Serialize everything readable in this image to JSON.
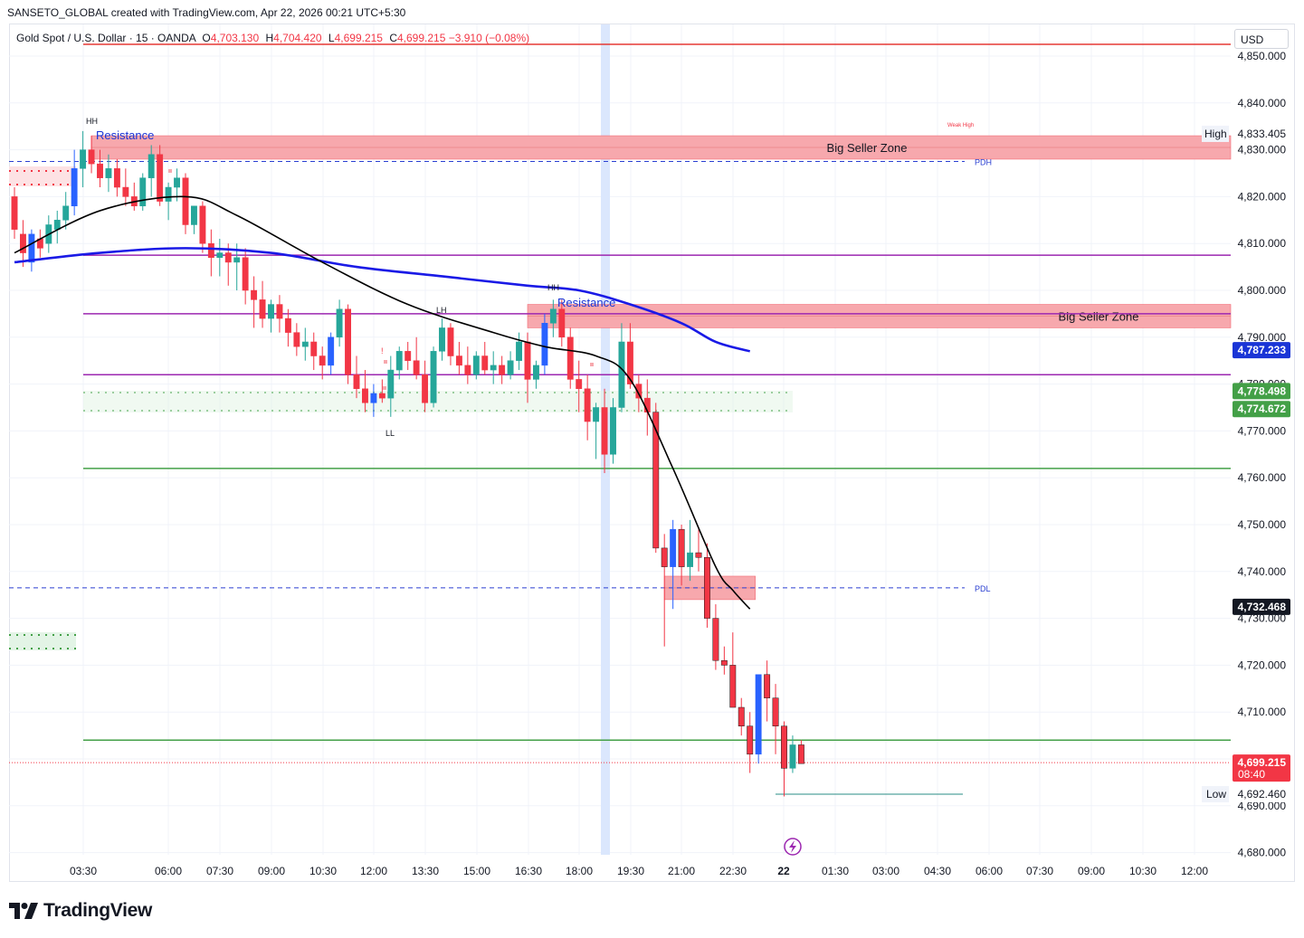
{
  "header": {
    "credit": "SANSETO_GLOBAL created with TradingView.com, Apr 22, 2026 00:21 UTC+5:30",
    "symbol": "Gold Spot / U.S. Dollar · 15 · OANDA",
    "o_label": "O",
    "o_value": "4,703.130",
    "h_label": "H",
    "h_value": "4,704.420",
    "l_label": "L",
    "l_value": "4,699.215",
    "c_label": "C",
    "c_value": "4,699.215 −3.910 (−0.08%)"
  },
  "currency": "USD",
  "brand": {
    "name": "TradingView",
    "icon": "tradingview-logo-icon"
  },
  "colors": {
    "up": "#26a69a",
    "up_alt": "#2962ff",
    "down": "#f23645",
    "ema20": "#000000",
    "ema50": "#1a1ae6",
    "zone": "#f7a8ad",
    "support": "#43a047",
    "level": "#9c27b0",
    "resistance_line": "#e53935",
    "session": "#dbe7fd"
  },
  "chart_data": {
    "type": "candlestick",
    "title": "Gold Spot / U.S. Dollar",
    "interval": "15",
    "exchange": "OANDA",
    "y_axis": {
      "range": [
        4677,
        4857
      ],
      "ticks": [
        "4,850.000",
        "4,840.000",
        "4,830.000",
        "4,820.000",
        "4,810.000",
        "4,800.000",
        "4,790.000",
        "4,780.000",
        "4,770.000",
        "4,760.000",
        "4,750.000",
        "4,740.000",
        "4,730.000",
        "4,720.000",
        "4,710.000",
        "4,700.000",
        "4,690.000",
        "4,680.000"
      ],
      "tick_values": [
        4850,
        4840,
        4830,
        4820,
        4810,
        4800,
        4790,
        4780,
        4770,
        4760,
        4750,
        4740,
        4730,
        4720,
        4710,
        4700,
        4690,
        4680
      ]
    },
    "x_axis": {
      "ticks": [
        "03:30",
        "06:00",
        "07:30",
        "09:00",
        "10:30",
        "12:00",
        "13:30",
        "15:00",
        "16:30",
        "18:00",
        "19:30",
        "21:00",
        "22:30",
        "22",
        "01:30",
        "03:00",
        "04:30",
        "06:00",
        "07:30",
        "09:00",
        "10:30",
        "12:00"
      ]
    },
    "candles": [
      [
        4820,
        4822,
        4811,
        4813
      ],
      [
        4812,
        4815,
        4805,
        4808
      ],
      [
        4806,
        4813,
        4804,
        4812
      ],
      [
        4811,
        4813,
        4807,
        4809
      ],
      [
        4810,
        4816,
        4808,
        4814
      ],
      [
        4813,
        4817,
        4810,
        4815
      ],
      [
        4815,
        4821,
        4813,
        4818
      ],
      [
        4818,
        4830,
        4816,
        4826
      ],
      [
        4826,
        4834,
        4822,
        4830
      ],
      [
        4830,
        4833,
        4825,
        4827
      ],
      [
        4827,
        4830,
        4822,
        4824
      ],
      [
        4824,
        4829,
        4821,
        4826
      ],
      [
        4826,
        4828,
        4820,
        4822
      ],
      [
        4822,
        4826,
        4818,
        4820
      ],
      [
        4820,
        4823,
        4817,
        4818
      ],
      [
        4818,
        4825,
        4817,
        4824
      ],
      [
        4824,
        4831,
        4820,
        4829
      ],
      [
        4829,
        4831,
        4818,
        4819
      ],
      [
        4819,
        4823,
        4815,
        4822
      ],
      [
        4822,
        4826,
        4819,
        4824
      ],
      [
        4824,
        4825,
        4812,
        4814
      ],
      [
        4814,
        4818,
        4812,
        4818
      ],
      [
        4818,
        4819,
        4808,
        4810
      ],
      [
        4810,
        4813,
        4803,
        4807
      ],
      [
        4807,
        4811,
        4803,
        4808
      ],
      [
        4808,
        4810,
        4801,
        4806
      ],
      [
        4806,
        4810,
        4800,
        4807
      ],
      [
        4807,
        4809,
        4797,
        4800
      ],
      [
        4800,
        4803,
        4792,
        4798
      ],
      [
        4798,
        4802,
        4792,
        4794
      ],
      [
        4794,
        4798,
        4791,
        4797
      ],
      [
        4797,
        4799,
        4791,
        4794
      ],
      [
        4794,
        4796,
        4788,
        4791
      ],
      [
        4791,
        4793,
        4786,
        4788
      ],
      [
        4788,
        4792,
        4785,
        4789
      ],
      [
        4789,
        4791,
        4783,
        4786
      ],
      [
        4786,
        4788,
        4781,
        4784
      ],
      [
        4784,
        4791,
        4782,
        4790
      ],
      [
        4790,
        4798,
        4788,
        4796
      ],
      [
        4796,
        4797,
        4780,
        4782
      ],
      [
        4782,
        4786,
        4777,
        4779
      ],
      [
        4779,
        4783,
        4774,
        4776
      ],
      [
        4776,
        4780,
        4773,
        4778
      ],
      [
        4778,
        4781,
        4776,
        4777
      ],
      [
        4777,
        4786,
        4773,
        4783
      ],
      [
        4783,
        4788,
        4781,
        4787
      ],
      [
        4787,
        4789,
        4783,
        4785
      ],
      [
        4785,
        4790,
        4781,
        4782
      ],
      [
        4782,
        4785,
        4774,
        4776
      ],
      [
        4776,
        4788,
        4775,
        4787
      ],
      [
        4787,
        4794,
        4785,
        4792
      ],
      [
        4792,
        4793,
        4784,
        4786
      ],
      [
        4786,
        4789,
        4782,
        4784
      ],
      [
        4784,
        4788,
        4780,
        4782
      ],
      [
        4782,
        4787,
        4781,
        4786
      ],
      [
        4786,
        4789,
        4782,
        4783
      ],
      [
        4783,
        4787,
        4780,
        4784
      ],
      [
        4784,
        4786,
        4780,
        4782
      ],
      [
        4782,
        4787,
        4781,
        4785
      ],
      [
        4785,
        4791,
        4783,
        4789
      ],
      [
        4789,
        4791,
        4776,
        4781
      ],
      [
        4781,
        4785,
        4779,
        4784
      ],
      [
        4784,
        4795,
        4782,
        4793
      ],
      [
        4793,
        4798,
        4790,
        4796
      ],
      [
        4796,
        4798,
        4788,
        4790
      ],
      [
        4790,
        4792,
        4779,
        4781
      ],
      [
        4781,
        4785,
        4774,
        4779
      ],
      [
        4779,
        4782,
        4768,
        4772
      ],
      [
        4772,
        4776,
        4764,
        4775
      ],
      [
        4775,
        4779,
        4761,
        4765
      ],
      [
        4765,
        4777,
        4763,
        4775
      ],
      [
        4775,
        4793,
        4774,
        4789
      ],
      [
        4789,
        4793,
        4779,
        4780
      ],
      [
        4780,
        4782,
        4774,
        4777
      ],
      [
        4777,
        4781,
        4769,
        4774
      ],
      [
        4774,
        4776,
        4744,
        4745
      ],
      [
        4745,
        4748,
        4724,
        4741
      ],
      [
        4741,
        4751,
        4732,
        4749
      ],
      [
        4749,
        4750,
        4737,
        4741
      ],
      [
        4741,
        4751,
        4738,
        4744
      ],
      [
        4744,
        4749,
        4740,
        4743
      ],
      [
        4743,
        4746,
        4728,
        4730
      ],
      [
        4730,
        4733,
        4719,
        4721
      ],
      [
        4721,
        4724,
        4718,
        4720
      ],
      [
        4720,
        4727,
        4711,
        4711
      ],
      [
        4711,
        4713,
        4705,
        4707
      ],
      [
        4707,
        4710,
        4697,
        4701
      ],
      [
        4701,
        4718,
        4699,
        4718
      ],
      [
        4718,
        4721,
        4708,
        4713
      ],
      [
        4713,
        4716,
        4701,
        4707
      ],
      [
        4707,
        4708,
        4692,
        4698
      ],
      [
        4698,
        4705,
        4697,
        4703
      ],
      [
        4703,
        4704,
        4699,
        4699
      ]
    ],
    "ema20": [
      [
        0,
        4808
      ],
      [
        10,
        4817
      ],
      [
        20,
        4820
      ],
      [
        26,
        4816
      ],
      [
        36,
        4806
      ],
      [
        46,
        4797
      ],
      [
        56,
        4791
      ],
      [
        62,
        4788
      ],
      [
        68,
        4786
      ],
      [
        72,
        4781
      ],
      [
        77,
        4762
      ],
      [
        82,
        4741
      ],
      [
        84,
        4736
      ],
      [
        86,
        4732
      ]
    ],
    "ema50": [
      [
        0,
        4806
      ],
      [
        10,
        4808
      ],
      [
        20,
        4809
      ],
      [
        30,
        4808
      ],
      [
        40,
        4805
      ],
      [
        50,
        4803
      ],
      [
        60,
        4801
      ],
      [
        66,
        4800
      ],
      [
        72,
        4797
      ],
      [
        78,
        4793
      ],
      [
        82,
        4789
      ],
      [
        86,
        4787
      ]
    ],
    "zones": [
      {
        "label": "Big Seller Zone",
        "from": 9,
        "top": 4833,
        "bottom": 4828
      },
      {
        "label": "Big Seller Zone",
        "from": 60,
        "top": 4797,
        "bottom": 4792
      },
      {
        "label": "",
        "from": 76,
        "to": 86,
        "top": 4739,
        "bottom": 4734
      }
    ],
    "levels": [
      {
        "value": 4852.5,
        "kind": "resistance_line"
      },
      {
        "value": 4807.5,
        "kind": "level"
      },
      {
        "value": 4795,
        "kind": "level"
      },
      {
        "value": 4782,
        "kind": "level"
      },
      {
        "value": 4762,
        "kind": "support"
      },
      {
        "value": 4704,
        "kind": "support"
      }
    ],
    "dashed_levels": [
      {
        "label": "PDH",
        "value": 4827.5
      },
      {
        "label": "PDL",
        "value": 4736.5
      }
    ],
    "annotations": [
      "HH",
      "Resistance",
      "HH",
      "Resistance",
      "LH",
      "LL",
      "Weak High",
      "!"
    ],
    "price_labels": [
      {
        "label": "High",
        "value": "4,833.405"
      },
      {
        "value": "4,787.233"
      },
      {
        "value": "4,778.498"
      },
      {
        "value": "4,774.672"
      },
      {
        "value": "4,732.468"
      },
      {
        "value": "4,699.215",
        "timer": "08:40"
      },
      {
        "label": "Low",
        "value": "4,692.460"
      }
    ]
  }
}
